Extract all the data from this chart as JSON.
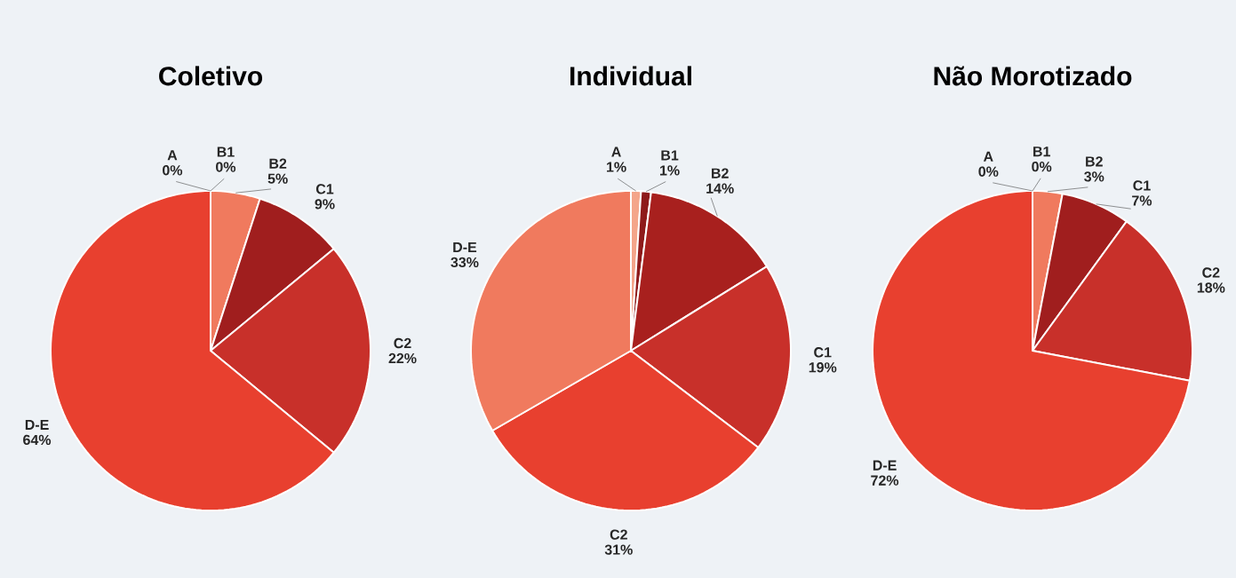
{
  "chart_data": [
    {
      "type": "pie",
      "title": "Coletivo",
      "categories": [
        "A",
        "B1",
        "B2",
        "C1",
        "C2",
        "D-E"
      ],
      "values": [
        0,
        0,
        5,
        9,
        22,
        64
      ],
      "value_labels": [
        "0%",
        "0%",
        "5%",
        "9%",
        "22%",
        "64%"
      ],
      "colors": [
        "#f4a58a",
        "#8e1a1a",
        "#f07a5e",
        "#a01e1e",
        "#c8302a",
        "#e8402f"
      ]
    },
    {
      "type": "pie",
      "title": "Individual",
      "categories": [
        "A",
        "B1",
        "B2",
        "C1",
        "C2",
        "D-E"
      ],
      "values": [
        1,
        1,
        14,
        19,
        31,
        33
      ],
      "value_labels": [
        "1%",
        "1%",
        "14%",
        "19%",
        "31%",
        "33%"
      ],
      "colors": [
        "#f4a58a",
        "#8e1a1a",
        "#a8201e",
        "#c8302a",
        "#e8402f",
        "#f07a5e"
      ]
    },
    {
      "type": "pie",
      "title": "Não Morotizado",
      "categories": [
        "A",
        "B1",
        "B2",
        "C1",
        "C2",
        "D-E"
      ],
      "values": [
        0,
        0,
        3,
        7,
        18,
        72
      ],
      "value_labels": [
        "0%",
        "0%",
        "3%",
        "7%",
        "18%",
        "72%"
      ],
      "colors": [
        "#f4a58a",
        "#8e1a1a",
        "#f07a5e",
        "#a01e1e",
        "#c8302a",
        "#e8402f"
      ]
    }
  ]
}
